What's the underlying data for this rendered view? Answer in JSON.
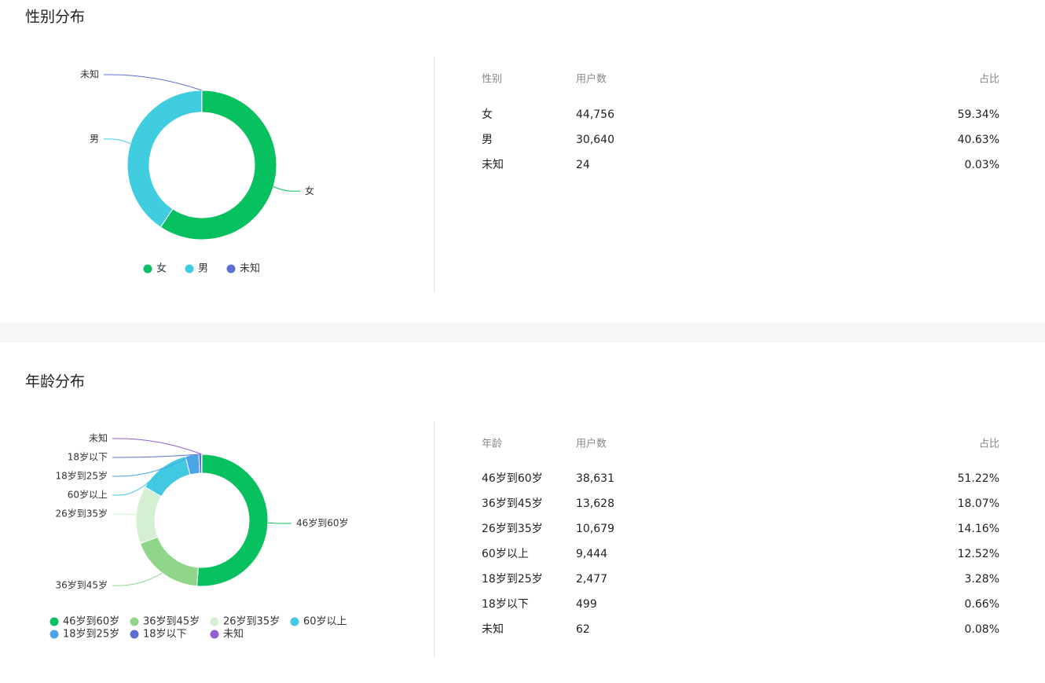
{
  "chart_data": [
    {
      "type": "pie",
      "title": "性别分布",
      "categories": [
        "女",
        "男",
        "未知"
      ],
      "values": [
        44756,
        30640,
        24
      ],
      "colors": [
        "#07c160",
        "#40cde0",
        "#5b6fd0"
      ]
    },
    {
      "type": "pie",
      "title": "年龄分布",
      "categories": [
        "46岁到60岁",
        "36岁到45岁",
        "26岁到35岁",
        "60岁以上",
        "18岁到25岁",
        "18岁以下",
        "未知"
      ],
      "values": [
        38631,
        13628,
        10679,
        9444,
        2477,
        499,
        62
      ],
      "colors": [
        "#07c160",
        "#8fd68a",
        "#d4efd2",
        "#40c9e0",
        "#4ba3e8",
        "#5b6fd0",
        "#8f5fd0"
      ]
    }
  ],
  "tables": [
    {
      "header": [
        "性别",
        "用户数",
        "占比"
      ],
      "rows": [
        [
          "女",
          "44,756",
          "59.34%"
        ],
        [
          "男",
          "30,640",
          "40.63%"
        ],
        [
          "未知",
          "24",
          "0.03%"
        ]
      ]
    },
    {
      "header": [
        "年龄",
        "用户数",
        "占比"
      ],
      "rows": [
        [
          "46岁到60岁",
          "38,631",
          "51.22%"
        ],
        [
          "36岁到45岁",
          "13,628",
          "18.07%"
        ],
        [
          "26岁到35岁",
          "10,679",
          "14.16%"
        ],
        [
          "60岁以上",
          "9,444",
          "12.52%"
        ],
        [
          "18岁到25岁",
          "2,477",
          "3.28%"
        ],
        [
          "18岁以下",
          "499",
          "0.66%"
        ],
        [
          "未知",
          "62",
          "0.08%"
        ]
      ]
    }
  ]
}
